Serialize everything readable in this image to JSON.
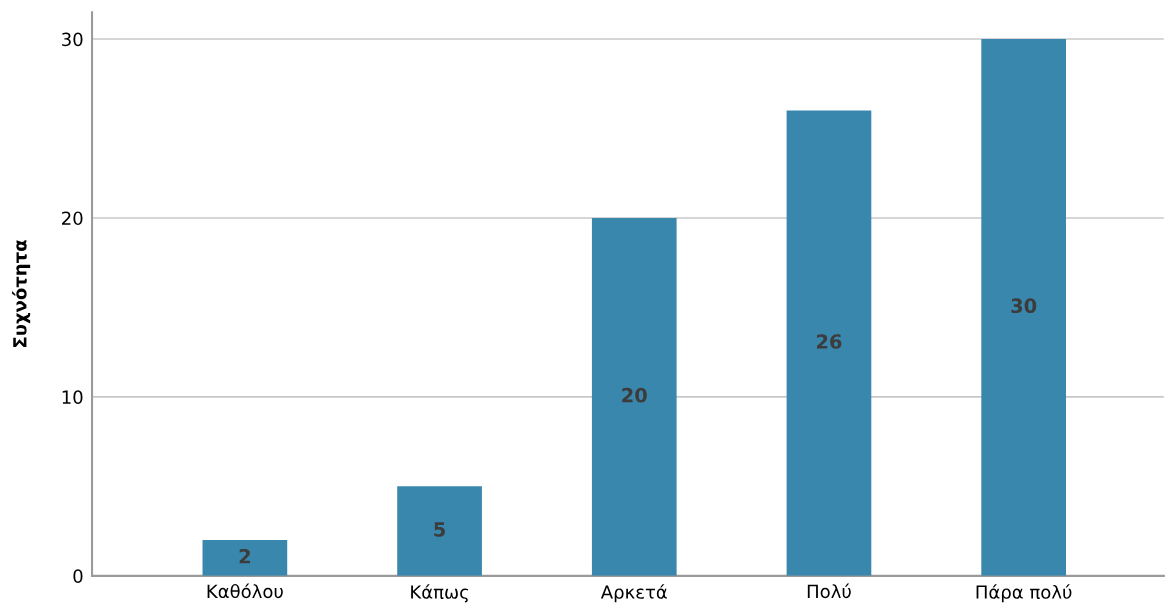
{
  "chart_data": {
    "type": "bar",
    "ylabel": "Συχνότητα",
    "categories": [
      "Καθόλου",
      "Κάπως",
      "Αρκετά",
      "Πολύ",
      "Πάρα πολύ"
    ],
    "values": [
      2,
      5,
      20,
      26,
      30
    ],
    "color": "#3a87ae",
    "ylim": [
      0,
      31.5
    ],
    "yticks": [
      0,
      10,
      20,
      30
    ],
    "grid": "y",
    "data_labels": true
  }
}
